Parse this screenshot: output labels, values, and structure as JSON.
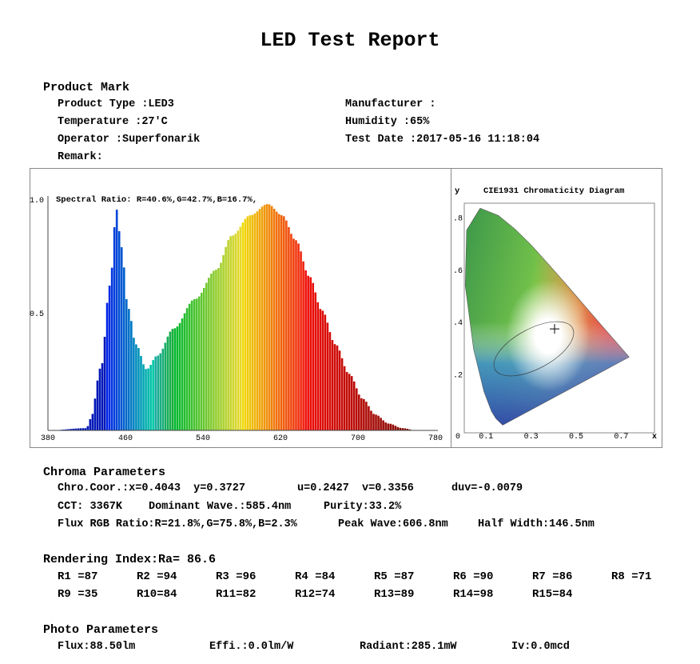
{
  "title": "LED Test Report",
  "product": {
    "heading": "Product Mark",
    "type": "Product Type :LED3",
    "manufacturer": "Manufacturer :",
    "temperature": "Temperature :27'C",
    "humidity": "Humidity :65%",
    "operator": "Operator :Superfonarik",
    "test_date": "Test Date :2017-05-16 11:18:04",
    "remark": "Remark:"
  },
  "chart_data": [
    {
      "type": "area",
      "annotation": "Spectral Ratio:  R=40.6%,G=42.7%,B=16.7%,",
      "xlim": [
        380,
        780
      ],
      "ylim": [
        0,
        1.0
      ],
      "x_ticks": [
        "380",
        "460",
        "540",
        "620",
        "700",
        "780"
      ],
      "y_ticks": [
        "1.0",
        "0.5"
      ],
      "grid": false,
      "fill": "wavelength-colored",
      "x": [
        380,
        420,
        424,
        435,
        444,
        451,
        456,
        463,
        471,
        482,
        493,
        510,
        532,
        554,
        570,
        589,
        607,
        622,
        636,
        650,
        663,
        677,
        691,
        705,
        718,
        732,
        746,
        760,
        780
      ],
      "y": [
        0,
        0.01,
        0.05,
        0.28,
        0.64,
        0.976,
        0.81,
        0.54,
        0.38,
        0.27,
        0.33,
        0.45,
        0.58,
        0.71,
        0.86,
        0.95,
        1.0,
        0.95,
        0.84,
        0.68,
        0.53,
        0.38,
        0.25,
        0.14,
        0.07,
        0.03,
        0.01,
        0,
        0
      ]
    },
    {
      "type": "scatter",
      "title": "CIE1931 Chromaticity Diagram",
      "xlabel": "x",
      "ylabel": "y",
      "x_ticks": [
        "0",
        "0.1",
        "0.3",
        "0.5",
        "0.7"
      ],
      "y_ticks": [
        ".8",
        ".6",
        ".4",
        ".2"
      ],
      "xlim": [
        0,
        0.8
      ],
      "ylim": [
        0,
        0.85
      ],
      "point": {
        "x": 0.4043,
        "y": 0.3727,
        "marker": "plus"
      }
    }
  ],
  "chroma": {
    "heading": "Chroma Parameters",
    "coor": "Chro.Coor.:x=0.4043  y=0.3727",
    "uv": "u=0.2427  v=0.3356",
    "duv": "duv=-0.0079",
    "cct": "CCT: 3367K",
    "dominant": "Dominant Wave.:585.4nm",
    "purity": "Purity:33.2%",
    "flux_rgb": "Flux RGB Ratio:R=21.8%,G=75.8%,B=2.3%",
    "peak": "Peak Wave:606.8nm",
    "half_width": "Half Width:146.5nm"
  },
  "rendering": {
    "heading": "Rendering Index:Ra= 86.6",
    "values": [
      "R1 =87",
      "R2 =94",
      "R3 =96",
      "R4 =84",
      "R5 =87",
      "R6 =90",
      "R7 =86",
      "R8 =71",
      "R9 =35",
      "R10=84",
      "R11=82",
      "R12=74",
      "R13=89",
      "R14=98",
      "R15=84"
    ]
  },
  "photo": {
    "heading": "Photo Parameters",
    "flux": "Flux:88.50lm",
    "effi": "Effi.:0.0lm/W",
    "radiant": "Radiant:285.1mW",
    "iv": "Iv:0.0mcd"
  }
}
